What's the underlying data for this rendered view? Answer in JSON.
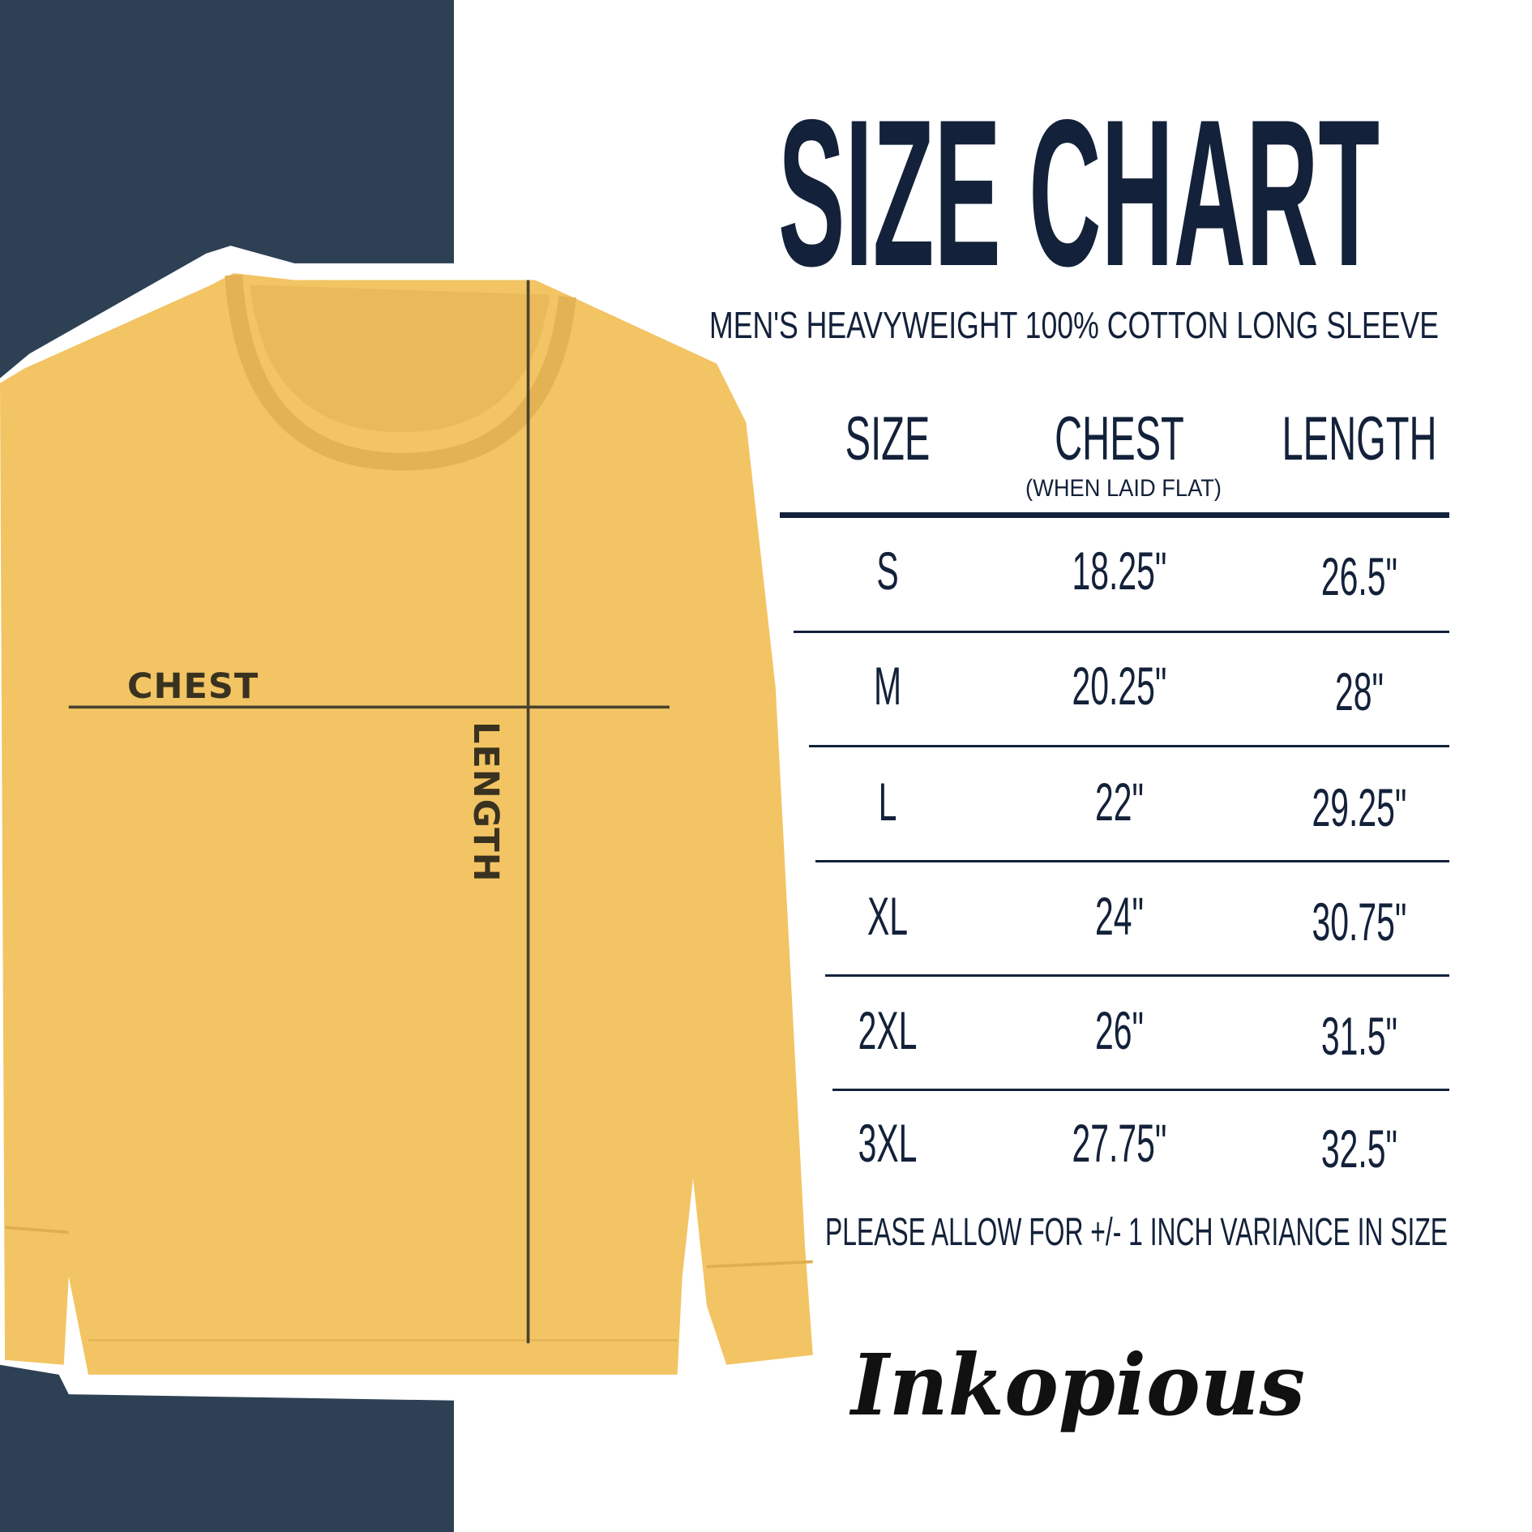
{
  "title": "SIZE CHART",
  "subtitle": "MEN'S HEAVYWEIGHT 100% COTTON LONG SLEEVE",
  "table": {
    "headers": [
      {
        "label": "SIZE",
        "sub": ""
      },
      {
        "label": "CHEST",
        "sub": "(WHEN LAID FLAT)"
      },
      {
        "label": "LENGTH",
        "sub": ""
      }
    ],
    "rows": [
      [
        "S",
        "18.25\"",
        "26.5\""
      ],
      [
        "M",
        "20.25\"",
        "28\""
      ],
      [
        "L",
        "22\"",
        "29.25\""
      ],
      [
        "XL",
        "24\"",
        "30.75\""
      ],
      [
        "2XL",
        "26\"",
        "31.5\""
      ],
      [
        "3XL",
        "27.75\"",
        "32.5\""
      ]
    ]
  },
  "note": "PLEASE ALLOW FOR +/- 1 INCH VARIANCE IN SIZE",
  "diagram": {
    "chest_label": "CHEST",
    "length_label": "LENGTH"
  },
  "brand": "Inkopious",
  "colors": {
    "panel": "#2e4154",
    "shirt": "#f2c463",
    "text": "#13213a"
  }
}
